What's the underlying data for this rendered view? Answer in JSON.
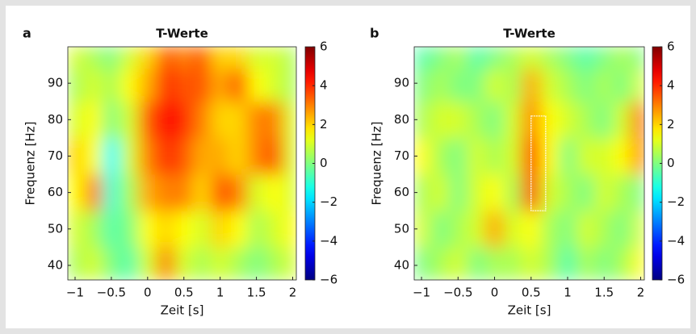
{
  "chart_data": [
    {
      "type": "heatmap",
      "panel": "a",
      "title": "T-Werte",
      "x_label": "Zeit [s]",
      "y_label": "Frequenz [Hz]",
      "x": [
        -1,
        -0.75,
        -0.5,
        -0.25,
        0,
        0.25,
        0.5,
        0.75,
        1,
        1.25,
        1.5,
        1.75,
        2
      ],
      "y": [
        40,
        50,
        60,
        70,
        80,
        90,
        98
      ],
      "z": [
        [
          0.5,
          1,
          0,
          -0.5,
          1,
          3,
          1,
          0.5,
          1,
          0.5,
          0,
          0.5,
          1
        ],
        [
          1,
          0.5,
          -0.5,
          0,
          1.5,
          2,
          1.5,
          1,
          2,
          1.5,
          0.5,
          1,
          1.5
        ],
        [
          1.5,
          3,
          -1,
          0.5,
          2.5,
          3,
          3,
          2,
          3.5,
          3,
          1,
          1.5,
          1
        ],
        [
          2,
          1.5,
          -1.5,
          1,
          3,
          4,
          3.5,
          2.5,
          2.5,
          2,
          3,
          3.5,
          1
        ],
        [
          1,
          1.5,
          0,
          1,
          3.5,
          4.5,
          4,
          3,
          2,
          2,
          3,
          3,
          1
        ],
        [
          0.5,
          1,
          0.5,
          1.5,
          2.5,
          4,
          3.5,
          3.5,
          2.5,
          3.5,
          1.5,
          1,
          0.5
        ],
        [
          1,
          0.5,
          0,
          1,
          2,
          3.5,
          3,
          3.5,
          2,
          2,
          1,
          1,
          0.5
        ]
      ],
      "xlim": [
        -1.1,
        2.05
      ],
      "ylim": [
        36,
        100
      ],
      "xticks": [
        {
          "value": -1,
          "label": "−1"
        },
        {
          "value": -0.5,
          "label": "−0.5"
        },
        0,
        0.5,
        1,
        1.5,
        2
      ],
      "yticks": [
        40,
        50,
        60,
        70,
        80,
        90
      ],
      "colormap": "jet",
      "clim": [
        -6,
        6
      ],
      "cticks": [
        {
          "value": -6,
          "label": "−6"
        },
        {
          "value": -4,
          "label": "−4"
        },
        {
          "value": -2,
          "label": "−2"
        },
        0,
        2,
        4,
        6
      ]
    },
    {
      "type": "heatmap",
      "panel": "b",
      "title": "T-Werte",
      "x_label": "Zeit [s]",
      "y_label": "Frequenz [Hz]",
      "x": [
        -1,
        -0.75,
        -0.5,
        -0.25,
        0,
        0.25,
        0.5,
        0.75,
        1,
        1.25,
        1.5,
        1.75,
        2
      ],
      "y": [
        40,
        50,
        60,
        70,
        80,
        90,
        98
      ],
      "z": [
        [
          0,
          0.5,
          1,
          0,
          0.5,
          0.5,
          1,
          0.5,
          -0.5,
          0.5,
          0,
          0.5,
          1.5
        ],
        [
          1,
          0,
          0.5,
          1,
          2.5,
          1,
          1.5,
          0.5,
          0,
          1,
          0.5,
          0,
          1
        ],
        [
          0.5,
          1,
          0,
          1,
          1.5,
          0.5,
          4,
          1,
          0.5,
          0,
          1,
          0.5,
          0
        ],
        [
          1.5,
          0.5,
          0,
          1,
          0.5,
          1,
          4.5,
          1.5,
          0,
          1,
          1,
          1.5,
          3
        ],
        [
          0.5,
          1,
          1,
          0.5,
          0,
          1,
          3,
          1.5,
          1,
          0.5,
          0,
          1,
          3.5
        ],
        [
          0,
          0.5,
          0,
          0,
          1,
          0.5,
          2.5,
          1,
          0.5,
          0,
          0.5,
          0,
          1
        ],
        [
          -0.5,
          0,
          0.5,
          -0.5,
          0,
          0.5,
          1,
          0.5,
          0,
          -0.5,
          0,
          0.5,
          0
        ]
      ],
      "xlim": [
        -1.1,
        2.05
      ],
      "ylim": [
        36,
        100
      ],
      "xticks": [
        {
          "value": -1,
          "label": "−1"
        },
        {
          "value": -0.5,
          "label": "−0.5"
        },
        0,
        0.5,
        1,
        1.5,
        2
      ],
      "yticks": [
        40,
        50,
        60,
        70,
        80,
        90
      ],
      "colormap": "jet",
      "clim": [
        -6,
        6
      ],
      "cticks": [
        {
          "value": -6,
          "label": "−6"
        },
        {
          "value": -4,
          "label": "−4"
        },
        {
          "value": -2,
          "label": "−2"
        },
        0,
        2,
        4,
        6
      ],
      "roi": {
        "x": [
          0.5,
          0.7
        ],
        "y": [
          55,
          81
        ]
      }
    }
  ]
}
